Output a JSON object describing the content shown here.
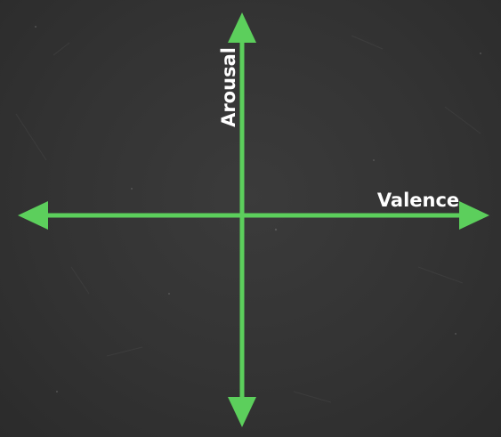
{
  "diagram": {
    "axes": {
      "horizontal_label": "Valence",
      "vertical_label": "Arousal"
    },
    "colors": {
      "axis": "#5ccf5c",
      "label": "#ffffff",
      "board": "#323232"
    }
  }
}
